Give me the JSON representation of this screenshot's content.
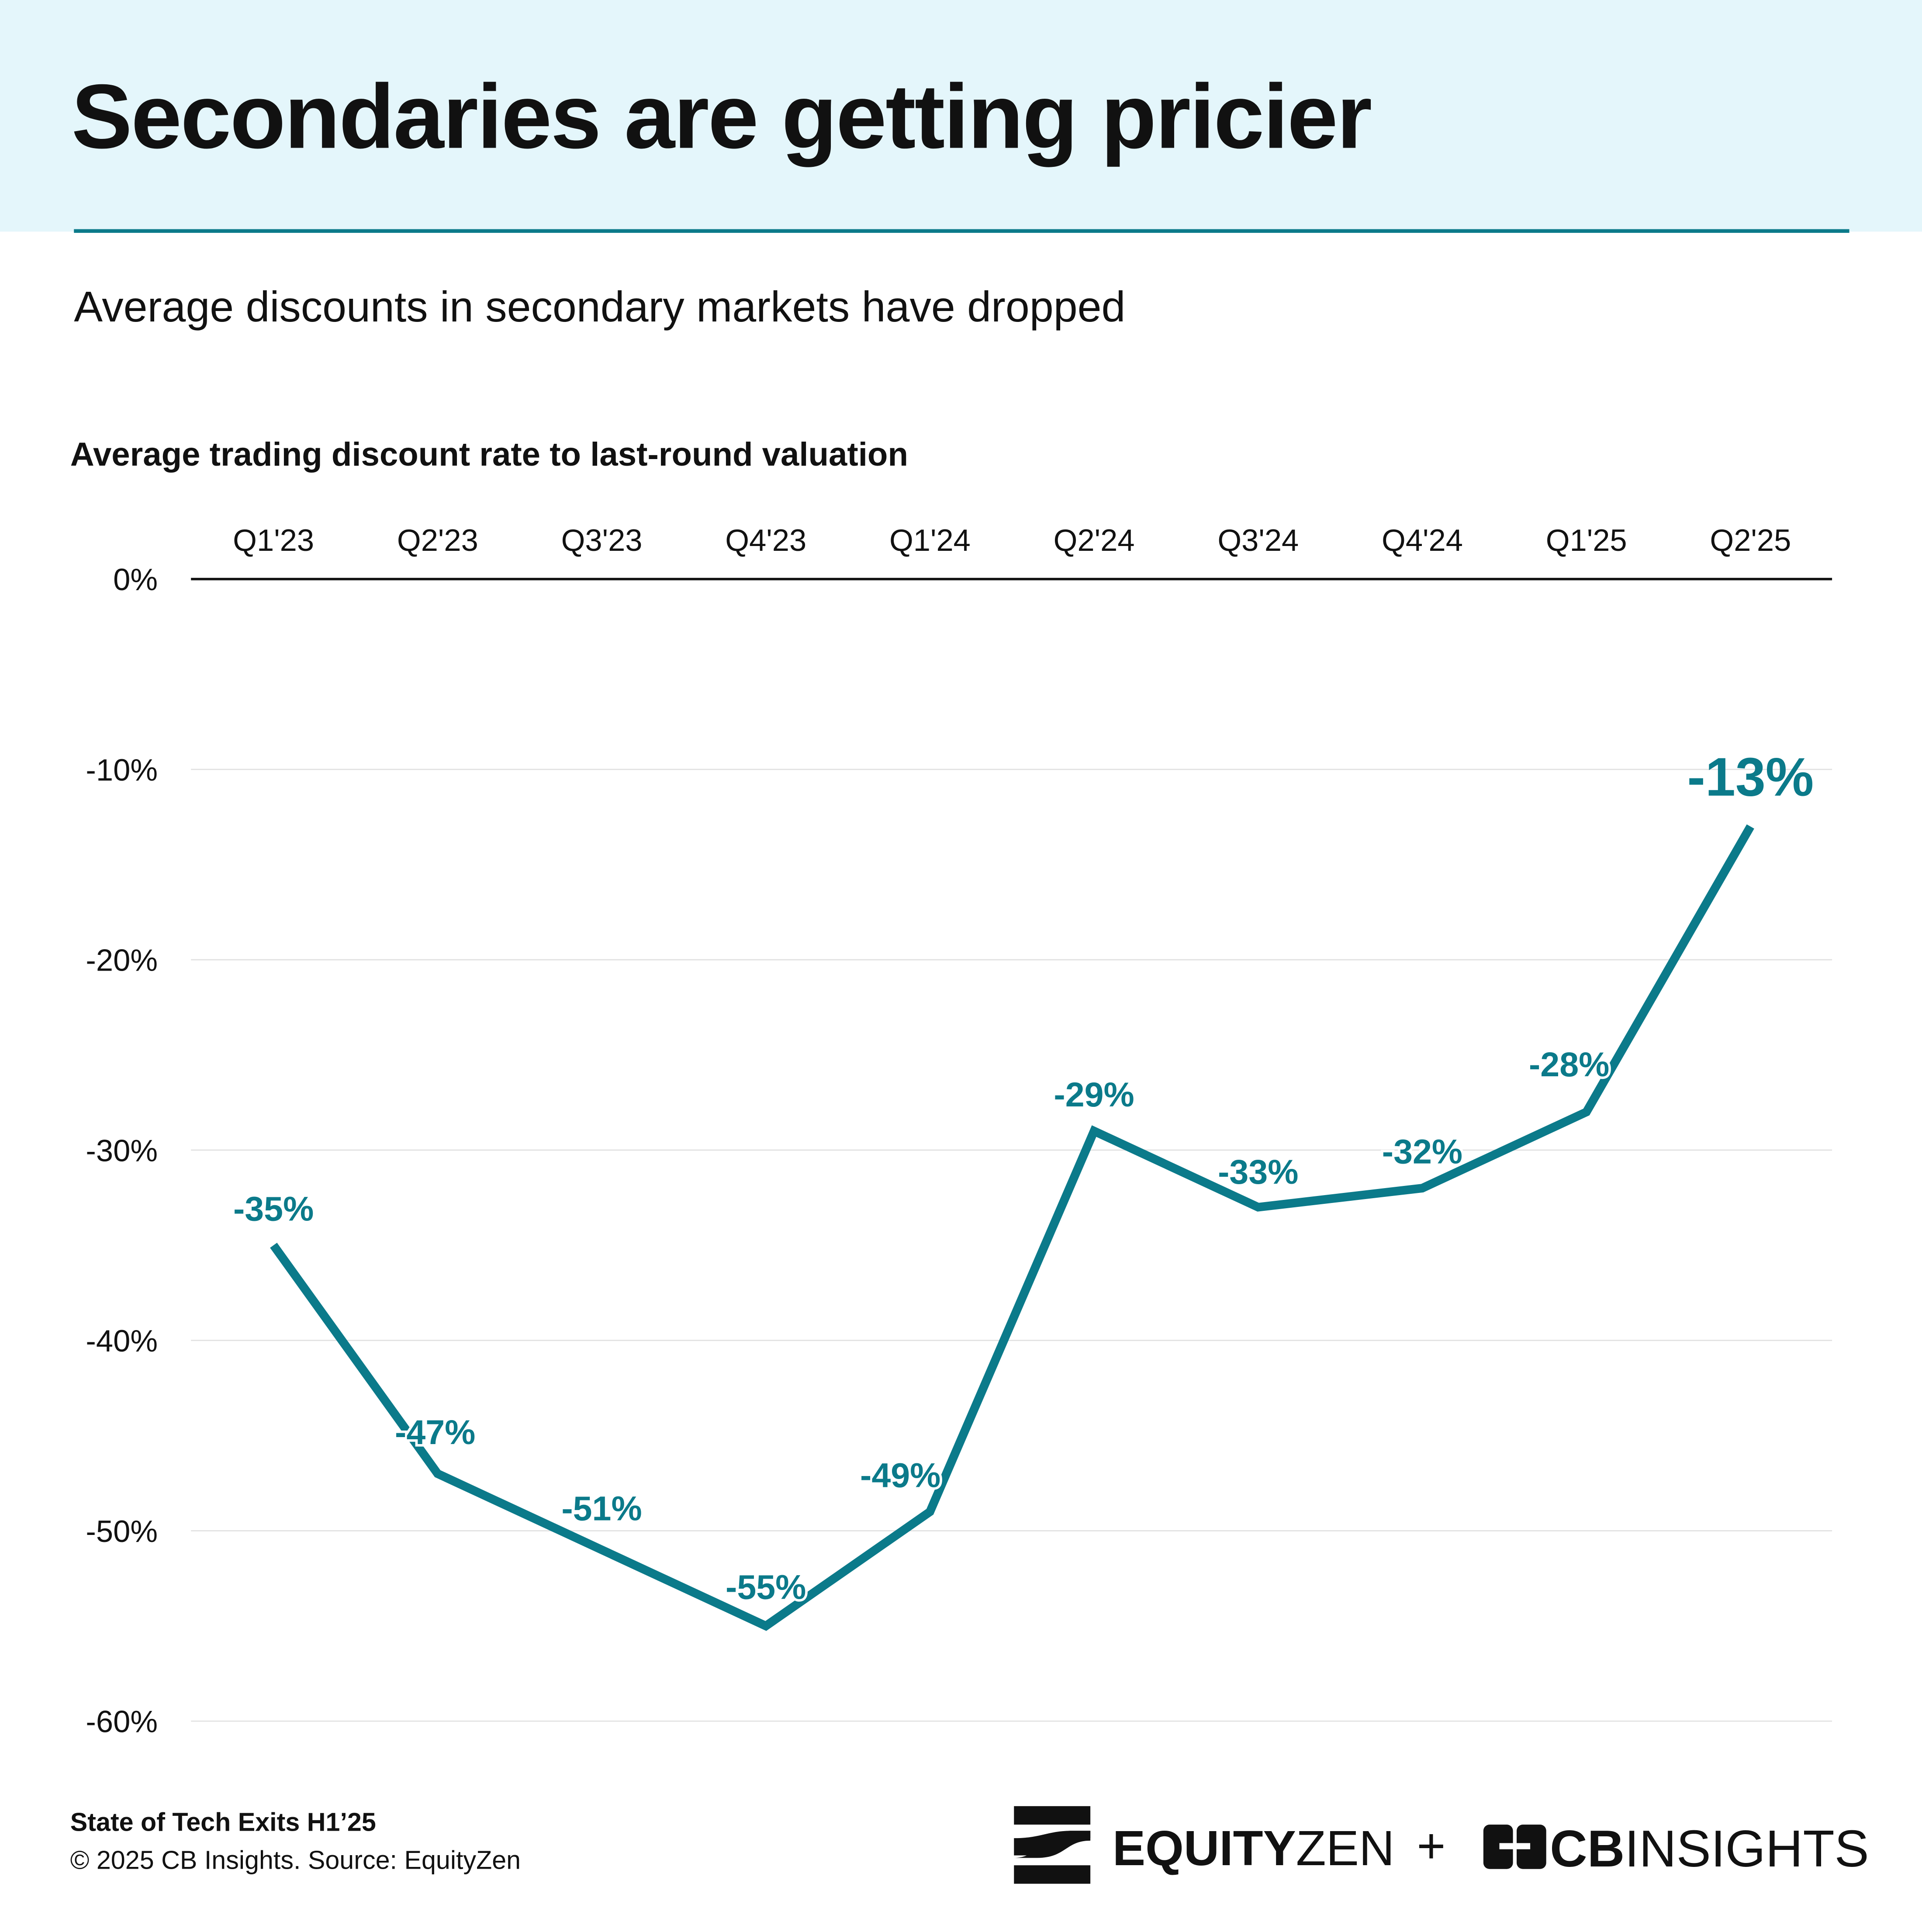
{
  "header": {
    "title": "Secondaries are getting pricier",
    "subtitle": "Average discounts in secondary markets have dropped"
  },
  "chart_data": {
    "type": "line",
    "title": "Average trading discount rate to last-round valuation",
    "categories": [
      "Q1'23",
      "Q2'23",
      "Q3'23",
      "Q4'23",
      "Q1'24",
      "Q2'24",
      "Q3'24",
      "Q4'24",
      "Q1'25",
      "Q2'25"
    ],
    "series": [
      {
        "name": "Average discount",
        "values": [
          -35,
          -47,
          -51,
          -55,
          -49,
          -29,
          -33,
          -32,
          -28,
          -13
        ]
      }
    ],
    "data_labels": [
      "-35%",
      "-47%",
      "-51%",
      "-55%",
      "-49%",
      "-29%",
      "-33%",
      "-32%",
      "-28%",
      "-13%"
    ],
    "yticks": [
      0,
      -10,
      -20,
      -30,
      -40,
      -50,
      -60
    ],
    "ytick_labels": [
      "0%",
      "-10%",
      "-20%",
      "-30%",
      "-40%",
      "-50%",
      "-60%"
    ],
    "ylim": [
      -60,
      0
    ],
    "xaxis_position": "top",
    "grid": true,
    "color": "#0b7a8a"
  },
  "footer": {
    "report": "State of Tech Exits H1’25",
    "source": "© 2025 CB Insights. Source: EquityZen"
  },
  "logos": {
    "equityzen": "EQUITYZEN",
    "plus": "+",
    "cbinsights": "CBINSIGHTS"
  }
}
